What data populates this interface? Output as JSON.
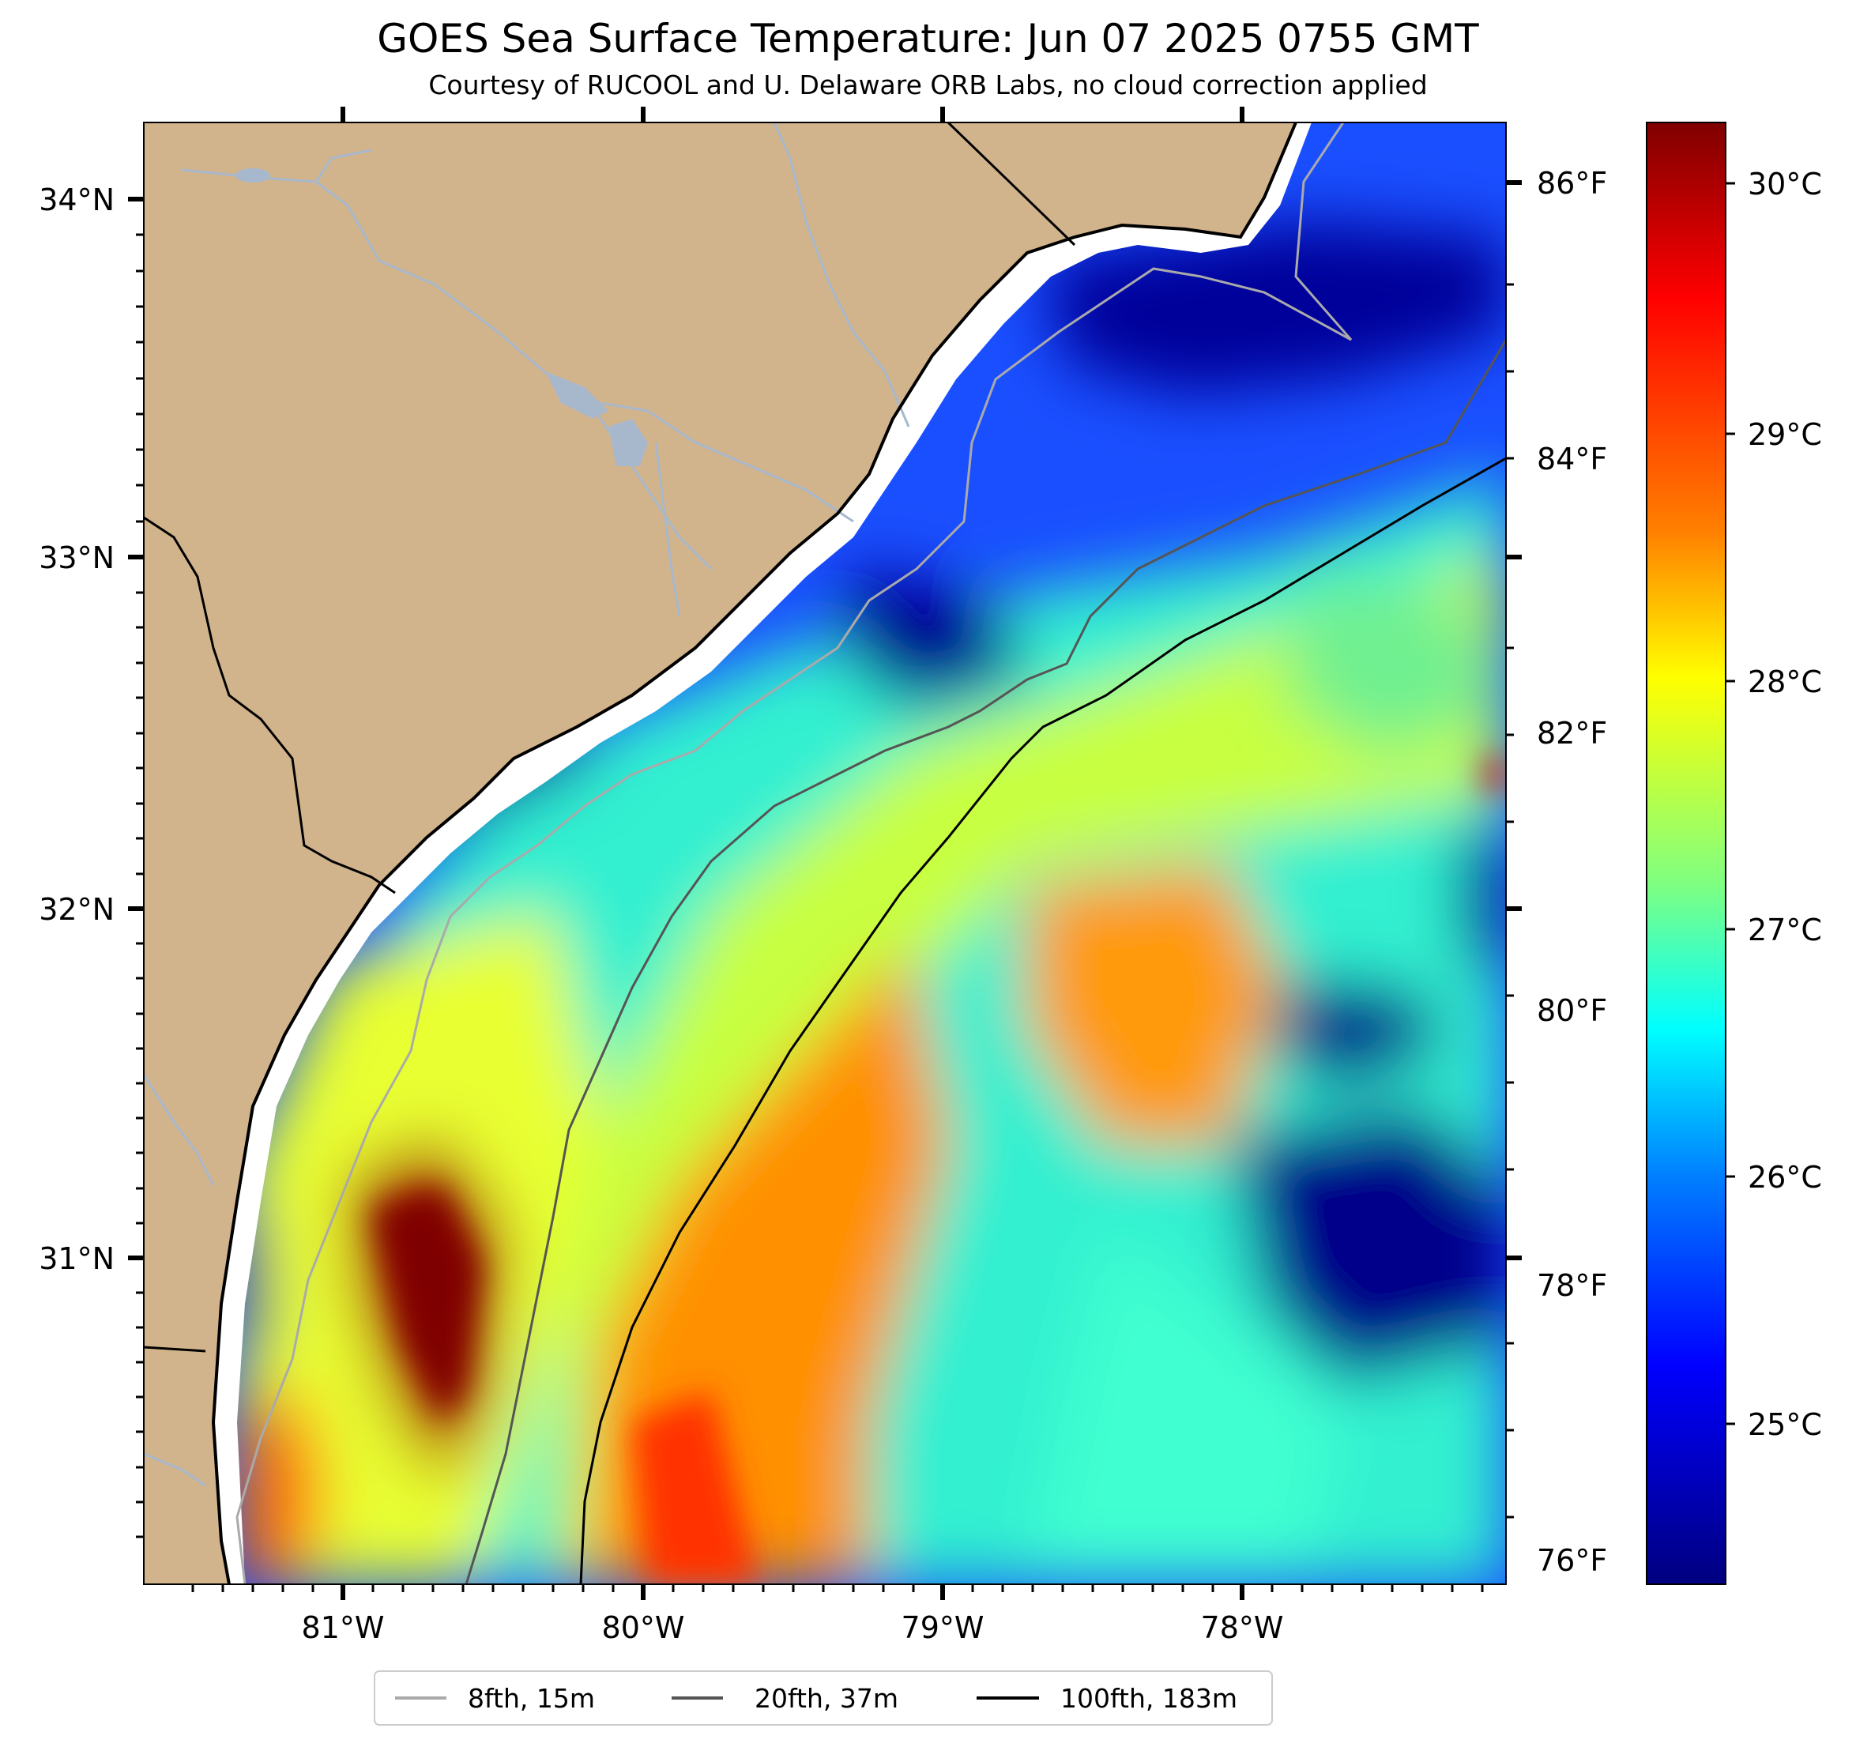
{
  "title": "GOES Sea Surface Temperature: Jun 07 2025 0755 GMT",
  "subtitle": "Courtesy of RUCOOL and U. Delaware ORB Labs, no cloud correction applied",
  "map": {
    "lon_ticks": [
      "81°W",
      "80°W",
      "79°W",
      "78°W"
    ],
    "lat_ticks": [
      "34°N",
      "33°N",
      "32°N",
      "31°N"
    ],
    "fahrenheit_ticks": [
      "86°F",
      "84°F",
      "82°F",
      "80°F",
      "78°F",
      "76°F"
    ]
  },
  "colorbar": {
    "ticks": [
      "30°C",
      "29°C",
      "28°C",
      "27°C",
      "26°C",
      "25°C"
    ],
    "colormap": [
      "#7f0000",
      "#ff0000",
      "#ff8000",
      "#ffff00",
      "#80ff80",
      "#00ffff",
      "#0080ff",
      "#0000ff",
      "#00007f"
    ]
  },
  "legend": [
    {
      "label": "8fth, 15m",
      "color": "#aaaaaa"
    },
    {
      "label": "20fth, 37m",
      "color": "#555555"
    },
    {
      "label": "100fth, 183m",
      "color": "#000000"
    }
  ],
  "colors": {
    "land": "#d2b48c",
    "water_fill": "#ffffff",
    "rivers": "#a8b8cc"
  }
}
